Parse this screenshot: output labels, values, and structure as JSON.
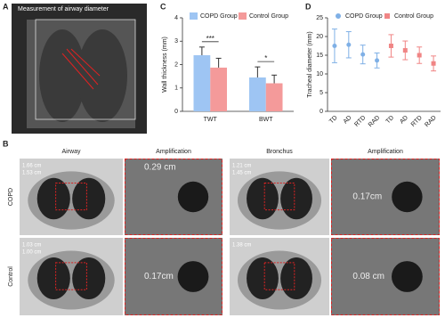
{
  "figure": {
    "panel_a": {
      "letter": "A",
      "title": "Measurement of airway diameter"
    },
    "panel_b": {
      "letter": "B",
      "column_headers": [
        "Airway",
        "Amplification",
        "Bronchus",
        "Amplification"
      ],
      "row_labels": [
        "COPD",
        "Control"
      ],
      "images": [
        {
          "labels": [
            "1.66 cm",
            "1.53 cm"
          ]
        },
        {
          "labels": [
            "0.29 cm"
          ]
        },
        {
          "labels": [
            "1.21 cm",
            "1.45 cm"
          ]
        },
        {
          "labels": [
            "0.17cm"
          ]
        },
        {
          "labels": [
            "1.03 cm",
            "1.00 cm"
          ]
        },
        {
          "labels": [
            "0.17cm"
          ]
        },
        {
          "labels": [
            "1.38 cm"
          ]
        },
        {
          "labels": [
            "0.08 cm"
          ]
        }
      ]
    }
  },
  "chart_data": [
    {
      "type": "bar",
      "panel_label": "C",
      "y_label": "Wall thickness (mm)",
      "categories": [
        "TWT",
        "BWT"
      ],
      "series": [
        {
          "name": "COPD Group",
          "color": "#9ec5f3",
          "values": [
            2.4,
            1.45
          ],
          "errors": [
            0.35,
            0.45
          ]
        },
        {
          "name": "Control Group",
          "color": "#f49a9a",
          "values": [
            1.87,
            1.2
          ],
          "errors": [
            0.4,
            0.35
          ]
        }
      ],
      "annotations": [
        "***",
        "*"
      ],
      "ylim": [
        0,
        4
      ],
      "yticks": [
        0,
        1,
        2,
        3,
        4
      ]
    },
    {
      "type": "errorpoint",
      "panel_label": "D",
      "y_label": "Tracheal diameter (mm)",
      "categories": [
        "TD",
        "AD",
        "RTD",
        "RAD",
        "TD",
        "AD",
        "RTD",
        "RAD"
      ],
      "series": [
        {
          "name": "COPD Group",
          "color": "#7fb0e6",
          "marker": "circle",
          "values": [
            17.5,
            17.8,
            15.2,
            13.6,
            null,
            null,
            null,
            null
          ],
          "errors": [
            4.5,
            3.5,
            2.5,
            2,
            null,
            null,
            null,
            null
          ]
        },
        {
          "name": "Control Group",
          "color": "#f08585",
          "marker": "square",
          "values": [
            null,
            null,
            null,
            null,
            17.5,
            16.3,
            15,
            12.8
          ],
          "errors": [
            null,
            null,
            null,
            null,
            3,
            2.5,
            2.2,
            2
          ]
        }
      ],
      "ylim": [
        0,
        25
      ],
      "yticks": [
        0,
        5,
        10,
        15,
        20,
        25
      ]
    }
  ]
}
